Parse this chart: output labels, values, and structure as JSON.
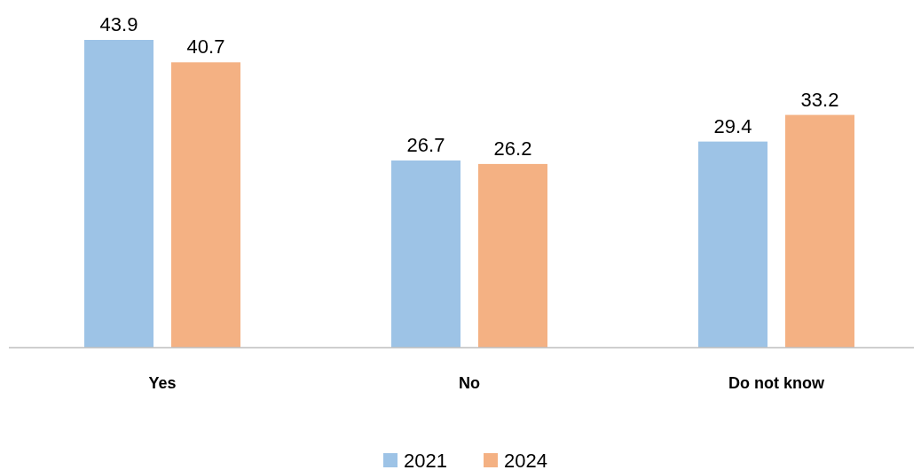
{
  "chart_data": {
    "type": "bar",
    "categories": [
      "Yes",
      "No",
      "Do not know"
    ],
    "series": [
      {
        "name": "2021",
        "color": "#9dc3e6",
        "values": [
          43.9,
          26.7,
          29.4
        ]
      },
      {
        "name": "2024",
        "color": "#f4b183",
        "values": [
          40.7,
          26.2,
          33.2
        ]
      }
    ],
    "data_labels": true,
    "legend": "bottom"
  }
}
